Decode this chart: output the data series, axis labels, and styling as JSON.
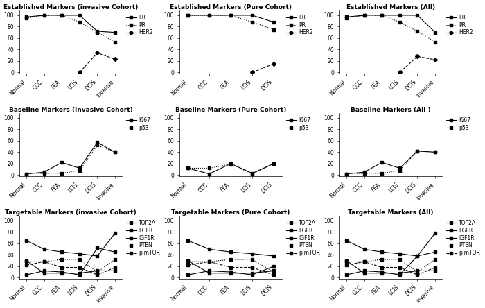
{
  "subplots": [
    {
      "title": "Established Markers (invasive Cohort)",
      "x_labels": [
        "Normal",
        "CCC",
        "FEA",
        "LCIS",
        "DCIS",
        "Invasive"
      ],
      "series": [
        {
          "name": "ER",
          "style": "solid",
          "marker": "s",
          "values": [
            97,
            100,
            100,
            100,
            72,
            70
          ]
        },
        {
          "name": "PR",
          "style": "dotted",
          "marker": "s",
          "values": [
            95,
            100,
            100,
            88,
            70,
            53
          ]
        },
        {
          "name": "HER2",
          "style": "dashed",
          "marker": "D",
          "values": [
            null,
            null,
            null,
            0,
            34,
            23
          ]
        }
      ],
      "ylim": [
        -2,
        108
      ],
      "yticks": [
        0,
        20,
        40,
        60,
        80,
        100
      ]
    },
    {
      "title": "Established Markers (Pure Cohort)",
      "x_labels": [
        "Normal",
        "CCC",
        "FEA",
        "LCIS",
        "DCIS"
      ],
      "series": [
        {
          "name": "ER",
          "style": "solid",
          "marker": "s",
          "values": [
            100,
            100,
            100,
            100,
            88
          ]
        },
        {
          "name": "PR",
          "style": "dotted",
          "marker": "s",
          "values": [
            100,
            100,
            100,
            88,
            75
          ]
        },
        {
          "name": "HER2",
          "style": "dashed",
          "marker": "D",
          "values": [
            null,
            null,
            null,
            0,
            15
          ]
        }
      ],
      "ylim": [
        -2,
        108
      ],
      "yticks": [
        0,
        20,
        40,
        60,
        80,
        100
      ]
    },
    {
      "title": "Established Markers (All)",
      "x_labels": [
        "Normal",
        "CCC",
        "FEA",
        "LCIS",
        "DCIS",
        "Invasive"
      ],
      "series": [
        {
          "name": "ER",
          "style": "solid",
          "marker": "s",
          "values": [
            97,
            100,
            100,
            100,
            100,
            70
          ]
        },
        {
          "name": "PR",
          "style": "dotted",
          "marker": "s",
          "values": [
            95,
            100,
            100,
            88,
            72,
            53
          ]
        },
        {
          "name": "HER2",
          "style": "dashed",
          "marker": "D",
          "values": [
            null,
            null,
            null,
            0,
            28,
            22
          ]
        }
      ],
      "ylim": [
        -2,
        108
      ],
      "yticks": [
        0,
        20,
        40,
        60,
        80,
        100
      ]
    },
    {
      "title": "Baseline Markers (invasive Cohort)",
      "x_labels": [
        "Normal",
        "CCC",
        "FEA",
        "LCIS",
        "DCIS",
        "Invasive"
      ],
      "series": [
        {
          "name": "Ki67",
          "style": "solid",
          "marker": "s",
          "values": [
            2,
            5,
            22,
            12,
            57,
            40
          ]
        },
        {
          "name": "p53",
          "style": "dotted",
          "marker": "s",
          "values": [
            2,
            3,
            3,
            8,
            52,
            40
          ]
        }
      ],
      "ylim": [
        -2,
        108
      ],
      "yticks": [
        0,
        20,
        40,
        60,
        80,
        100
      ]
    },
    {
      "title": "Baseline Markers (Pure Cohort)",
      "x_labels": [
        "Normal",
        "CCC",
        "FEA",
        "LCIS",
        "DCIS"
      ],
      "series": [
        {
          "name": "Ki67",
          "style": "solid",
          "marker": "s",
          "values": [
            12,
            2,
            20,
            3,
            20
          ]
        },
        {
          "name": "p53",
          "style": "dotted",
          "marker": "s",
          "values": [
            12,
            12,
            19,
            2,
            20
          ]
        }
      ],
      "ylim": [
        -2,
        108
      ],
      "yticks": [
        0,
        20,
        40,
        60,
        80,
        100
      ]
    },
    {
      "title": "Baseline Markers (All )",
      "x_labels": [
        "Normal",
        "CCC",
        "FEA",
        "LCIS",
        "DCIS",
        "Invasive"
      ],
      "series": [
        {
          "name": "Ki67",
          "style": "solid",
          "marker": "s",
          "values": [
            2,
            5,
            22,
            12,
            42,
            40
          ]
        },
        {
          "name": "p53",
          "style": "dotted",
          "marker": "s",
          "values": [
            2,
            3,
            3,
            8,
            42,
            40
          ]
        }
      ],
      "ylim": [
        -2,
        108
      ],
      "yticks": [
        0,
        20,
        40,
        60,
        80,
        100
      ]
    },
    {
      "title": "Targetable Markers (invasive Cohort)",
      "x_labels": [
        "Normal",
        "CCC",
        "FEA",
        "LCIS",
        "DCIS",
        "Invasive"
      ],
      "series": [
        {
          "name": "TOP2A",
          "style": "solid",
          "marker": "s",
          "values": [
            5,
            12,
            10,
            5,
            52,
            45
          ]
        },
        {
          "name": "EGFR",
          "style": "solid",
          "marker": "s",
          "values": [
            30,
            8,
            8,
            8,
            12,
            12
          ]
        },
        {
          "name": "IGF1R",
          "style": "solid",
          "marker": "s",
          "values": [
            65,
            50,
            45,
            42,
            38,
            78
          ]
        },
        {
          "name": "PTEN",
          "style": "dotted",
          "marker": "s",
          "values": [
            28,
            28,
            32,
            32,
            10,
            32
          ]
        },
        {
          "name": "p-mTOR",
          "style": "dashed",
          "marker": "s",
          "values": [
            22,
            28,
            18,
            18,
            5,
            18
          ]
        }
      ],
      "ylim": [
        -2,
        108
      ],
      "yticks": [
        0,
        20,
        40,
        60,
        80,
        100
      ]
    },
    {
      "title": "Targetable Markers (Pure Cohort)",
      "x_labels": [
        "Normal",
        "CCC",
        "FEA",
        "LCIS",
        "DCIS"
      ],
      "series": [
        {
          "name": "TOP2A",
          "style": "solid",
          "marker": "s",
          "values": [
            5,
            12,
            10,
            5,
            20
          ]
        },
        {
          "name": "EGFR",
          "style": "solid",
          "marker": "s",
          "values": [
            30,
            8,
            8,
            8,
            12
          ]
        },
        {
          "name": "IGF1R",
          "style": "solid",
          "marker": "s",
          "values": [
            65,
            50,
            45,
            42,
            38
          ]
        },
        {
          "name": "PTEN",
          "style": "dotted",
          "marker": "s",
          "values": [
            28,
            28,
            32,
            32,
            10
          ]
        },
        {
          "name": "p-mTOR",
          "style": "dashed",
          "marker": "s",
          "values": [
            22,
            28,
            18,
            18,
            5
          ]
        }
      ],
      "ylim": [
        -2,
        108
      ],
      "yticks": [
        0,
        20,
        40,
        60,
        80,
        100
      ]
    },
    {
      "title": "Targetable Markers (All)",
      "x_labels": [
        "Normal",
        "CCC",
        "FEA",
        "LCIS",
        "DCIS",
        "Invasive"
      ],
      "series": [
        {
          "name": "TOP2A",
          "style": "solid",
          "marker": "s",
          "values": [
            5,
            12,
            10,
            5,
            38,
            45
          ]
        },
        {
          "name": "EGFR",
          "style": "solid",
          "marker": "s",
          "values": [
            30,
            8,
            8,
            8,
            12,
            12
          ]
        },
        {
          "name": "IGF1R",
          "style": "solid",
          "marker": "s",
          "values": [
            65,
            50,
            45,
            42,
            38,
            78
          ]
        },
        {
          "name": "PTEN",
          "style": "dotted",
          "marker": "s",
          "values": [
            28,
            28,
            32,
            32,
            10,
            32
          ]
        },
        {
          "name": "p-mTOR",
          "style": "dashed",
          "marker": "s",
          "values": [
            22,
            28,
            18,
            18,
            5,
            18
          ]
        }
      ],
      "ylim": [
        -2,
        108
      ],
      "yticks": [
        0,
        20,
        40,
        60,
        80,
        100
      ]
    }
  ],
  "line_color": "#000000",
  "bg_color": "#ffffff",
  "grid_rows": 3,
  "grid_cols": 3,
  "figsize": [
    7.0,
    4.44
  ],
  "dpi": 100,
  "fontsize_title": 6.5,
  "fontsize_tick": 5.5,
  "fontsize_legend": 5.5,
  "marker_size": 3,
  "linewidth": 0.8
}
